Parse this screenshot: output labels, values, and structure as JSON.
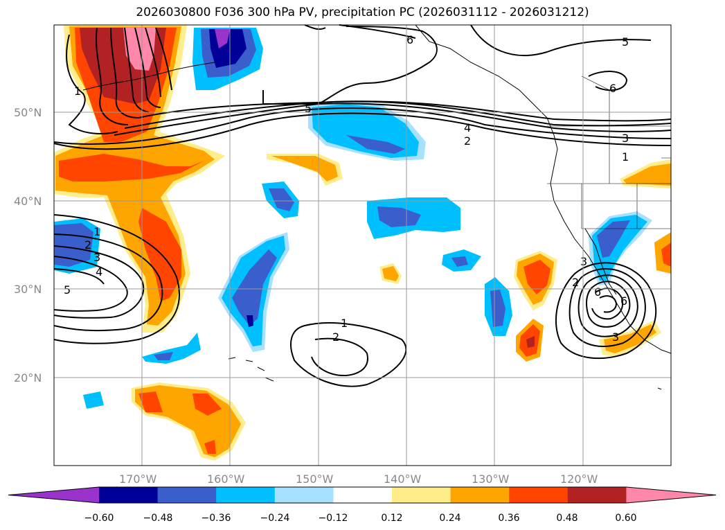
{
  "title": "2026030800 F036 300 hPa PV, precipitation PC (2026031112 - 2026031212)",
  "map": {
    "lon_range": [
      -180,
      -110
    ],
    "lat_range": [
      10,
      60
    ],
    "lat_labels": [
      "20°N",
      "30°N",
      "40°N",
      "50°N"
    ],
    "lon_labels": [
      "170°W",
      "160°W",
      "150°W",
      "140°W",
      "130°W",
      "120°W"
    ],
    "gridlines": true
  },
  "contour_labels": [
    "1",
    "2",
    "3",
    "4",
    "5",
    "6",
    "1",
    "2",
    "3",
    "4",
    "5",
    "1",
    "2",
    "3",
    "4",
    "5",
    "6",
    "2",
    "6",
    "5",
    "6",
    "3",
    "1",
    "2",
    "3"
  ],
  "colorbar": {
    "colors": [
      "#9933cc",
      "#000099",
      "#3a5fcd",
      "#00bfff",
      "#a8e0ff",
      "#ffffff",
      "#ffec8b",
      "#ffa500",
      "#ff4500",
      "#b22222",
      "#ff88aa"
    ],
    "tick_labels": [
      "−0.60",
      "−0.48",
      "−0.36",
      "−0.24",
      "−0.12",
      "0.12",
      "0.24",
      "0.36",
      "0.48",
      "0.60"
    ]
  }
}
